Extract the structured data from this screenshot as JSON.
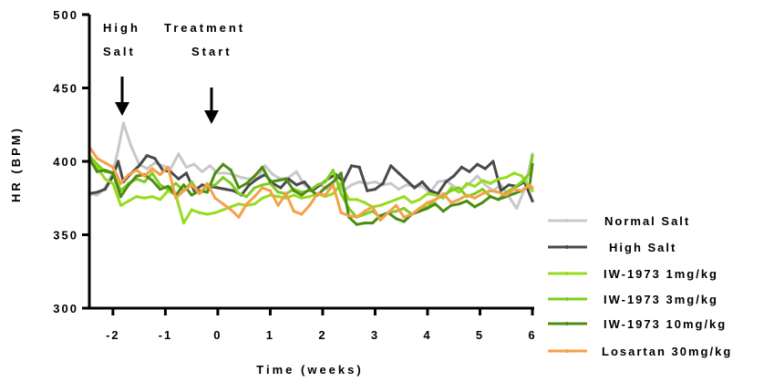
{
  "chart_data": {
    "type": "line",
    "xlabel": "Time (weeks)",
    "ylabel": "HR (BPM)",
    "xlim": [
      -2.45,
      6.0
    ],
    "ylim": [
      300,
      500
    ],
    "x_ticks": [
      -2,
      -1,
      0,
      1,
      2,
      3,
      4,
      5,
      6
    ],
    "x_tick_labels": [
      "-2",
      "-1",
      "0",
      "1",
      "2",
      "3",
      "4",
      "5",
      "6"
    ],
    "y_ticks": [
      300,
      350,
      400,
      450,
      500
    ],
    "y_tick_labels": [
      "300",
      "350",
      "400",
      "450",
      "500"
    ],
    "legend_position": "right",
    "annotations": [
      {
        "lines": [
          "High",
          "Salt"
        ],
        "x": -1.8,
        "arrow": true
      },
      {
        "lines": [
          "Treatment",
          "Start"
        ],
        "x": -0.1,
        "arrow": true
      }
    ],
    "series": [
      {
        "name": "Normal Salt",
        "color": "#c8c8c8",
        "x": [
          -2.45,
          -2.3,
          -2.15,
          -2.0,
          -1.9,
          -1.8,
          -1.65,
          -1.5,
          -1.35,
          -1.2,
          -1.05,
          -0.9,
          -0.75,
          -0.6,
          -0.45,
          -0.3,
          -0.15,
          0.0,
          0.15,
          0.3,
          0.45,
          0.6,
          0.75,
          0.9,
          1.05,
          1.2,
          1.35,
          1.5,
          1.65,
          1.8,
          1.95,
          2.1,
          2.25,
          2.4,
          2.55,
          2.7,
          2.85,
          3.0,
          3.15,
          3.3,
          3.45,
          3.6,
          3.75,
          3.9,
          4.05,
          4.2,
          4.35,
          4.5,
          4.65,
          4.8,
          4.95,
          5.1,
          5.25,
          5.4,
          5.55,
          5.7,
          5.85,
          6.0
        ],
        "y": [
          378,
          377,
          382,
          393,
          408,
          426,
          410,
          398,
          395,
          399,
          397,
          395,
          405,
          396,
          398,
          393,
          397,
          392,
          392,
          391,
          389,
          388,
          388,
          397,
          391,
          388,
          389,
          393,
          384,
          380,
          384,
          381,
          388,
          380,
          384,
          386,
          385,
          386,
          384,
          385,
          381,
          384,
          383,
          383,
          379,
          386,
          387,
          383,
          381,
          385,
          390,
          384,
          380,
          384,
          376,
          368,
          381,
          405
        ]
      },
      {
        "name": "High Salt",
        "color": "#4a4a4a",
        "x": [
          -2.45,
          -2.3,
          -2.15,
          -2.0,
          -1.9,
          -1.8,
          -1.65,
          -1.5,
          -1.35,
          -1.2,
          -1.05,
          -0.9,
          -0.75,
          -0.6,
          -0.45,
          -0.3,
          -0.15,
          0.0,
          0.15,
          0.3,
          0.45,
          0.6,
          0.75,
          0.9,
          1.05,
          1.2,
          1.35,
          1.5,
          1.65,
          1.8,
          1.95,
          2.1,
          2.25,
          2.4,
          2.55,
          2.7,
          2.85,
          3.0,
          3.15,
          3.3,
          3.45,
          3.6,
          3.75,
          3.9,
          4.05,
          4.2,
          4.35,
          4.5,
          4.65,
          4.8,
          4.95,
          5.1,
          5.25,
          5.4,
          5.55,
          5.7,
          5.85,
          6.0
        ],
        "y": [
          378,
          379,
          381,
          390,
          400,
          386,
          392,
          397,
          404,
          402,
          394,
          393,
          388,
          392,
          380,
          384,
          383,
          382,
          381,
          380,
          377,
          384,
          388,
          391,
          385,
          382,
          388,
          384,
          386,
          380,
          384,
          388,
          391,
          386,
          397,
          396,
          380,
          381,
          385,
          397,
          392,
          387,
          382,
          386,
          380,
          378,
          386,
          390,
          396,
          393,
          398,
          395,
          400,
          380,
          384,
          383,
          386,
          373
        ]
      },
      {
        "name": "IW-1973 1mg/kg",
        "color": "#96dc1e",
        "x": [
          -2.45,
          -2.3,
          -2.15,
          -2.0,
          -1.85,
          -1.7,
          -1.55,
          -1.4,
          -1.25,
          -1.1,
          -0.95,
          -0.8,
          -0.65,
          -0.5,
          -0.35,
          -0.2,
          -0.05,
          0.1,
          0.25,
          0.4,
          0.55,
          0.7,
          0.85,
          1.0,
          1.15,
          1.3,
          1.45,
          1.6,
          1.75,
          1.9,
          2.05,
          2.2,
          2.35,
          2.5,
          2.65,
          2.8,
          2.95,
          3.1,
          3.25,
          3.4,
          3.55,
          3.7,
          3.85,
          4.0,
          4.15,
          4.3,
          4.45,
          4.6,
          4.75,
          4.9,
          5.05,
          5.2,
          5.35,
          5.5,
          5.65,
          5.8,
          5.95,
          6.0
        ],
        "y": [
          400,
          396,
          388,
          385,
          370,
          373,
          376,
          375,
          376,
          374,
          380,
          377,
          358,
          367,
          365,
          364,
          365,
          367,
          369,
          371,
          370,
          371,
          375,
          377,
          376,
          375,
          377,
          375,
          376,
          378,
          376,
          378,
          385,
          374,
          374,
          372,
          369,
          370,
          372,
          374,
          376,
          372,
          374,
          378,
          377,
          375,
          382,
          379,
          385,
          383,
          387,
          385,
          388,
          389,
          392,
          390,
          382,
          380
        ]
      },
      {
        "name": "IW-1973 3mg/kg",
        "color": "#7fcd1e",
        "x": [
          -2.45,
          -2.3,
          -2.15,
          -2.0,
          -1.85,
          -1.7,
          -1.55,
          -1.4,
          -1.25,
          -1.1,
          -0.95,
          -0.8,
          -0.65,
          -0.5,
          -0.35,
          -0.2,
          -0.05,
          0.1,
          0.25,
          0.4,
          0.55,
          0.7,
          0.85,
          1.0,
          1.15,
          1.3,
          1.45,
          1.6,
          1.75,
          1.9,
          2.05,
          2.2,
          2.35,
          2.5,
          2.65,
          2.8,
          2.95,
          3.1,
          3.25,
          3.4,
          3.55,
          3.7,
          3.85,
          4.0,
          4.15,
          4.3,
          4.45,
          4.6,
          4.75,
          4.9,
          5.05,
          5.2,
          5.35,
          5.5,
          5.65,
          5.8,
          5.95,
          6.0
        ],
        "y": [
          404,
          398,
          393,
          392,
          380,
          385,
          388,
          386,
          392,
          384,
          381,
          385,
          380,
          386,
          378,
          383,
          384,
          389,
          385,
          378,
          376,
          382,
          384,
          385,
          379,
          378,
          381,
          379,
          380,
          384,
          386,
          394,
          378,
          368,
          362,
          364,
          366,
          362,
          365,
          366,
          368,
          364,
          368,
          369,
          374,
          377,
          380,
          382,
          376,
          378,
          381,
          376,
          374,
          379,
          382,
          386,
          392,
          404
        ]
      },
      {
        "name": "IW-1973 10mg/kg",
        "color": "#4d8c12",
        "x": [
          -2.45,
          -2.3,
          -2.15,
          -2.0,
          -1.85,
          -1.7,
          -1.55,
          -1.4,
          -1.25,
          -1.1,
          -0.95,
          -0.8,
          -0.65,
          -0.5,
          -0.35,
          -0.2,
          -0.05,
          0.1,
          0.25,
          0.4,
          0.55,
          0.7,
          0.85,
          1.0,
          1.15,
          1.3,
          1.45,
          1.6,
          1.75,
          1.9,
          2.05,
          2.2,
          2.35,
          2.5,
          2.65,
          2.8,
          2.95,
          3.1,
          3.25,
          3.4,
          3.55,
          3.7,
          3.85,
          4.0,
          4.15,
          4.3,
          4.45,
          4.6,
          4.75,
          4.9,
          5.05,
          5.2,
          5.35,
          5.5,
          5.65,
          5.8,
          5.95,
          6.0
        ],
        "y": [
          402,
          393,
          394,
          392,
          376,
          384,
          390,
          391,
          387,
          381,
          383,
          377,
          384,
          377,
          380,
          379,
          392,
          398,
          394,
          382,
          385,
          390,
          396,
          386,
          387,
          388,
          380,
          377,
          381,
          377,
          382,
          386,
          392,
          362,
          357,
          358,
          358,
          363,
          365,
          361,
          359,
          364,
          366,
          368,
          371,
          366,
          370,
          371,
          373,
          369,
          372,
          376,
          374,
          376,
          378,
          380,
          384,
          398
        ]
      },
      {
        "name": "Losartan 30mg/kg",
        "color": "#f5a04a",
        "x": [
          -2.45,
          -2.3,
          -2.15,
          -2.0,
          -1.85,
          -1.7,
          -1.55,
          -1.4,
          -1.25,
          -1.1,
          -0.95,
          -0.8,
          -0.65,
          -0.5,
          -0.35,
          -0.2,
          -0.05,
          0.1,
          0.25,
          0.4,
          0.55,
          0.7,
          0.85,
          1.0,
          1.15,
          1.3,
          1.45,
          1.6,
          1.75,
          1.9,
          2.05,
          2.2,
          2.35,
          2.5,
          2.65,
          2.8,
          2.95,
          3.1,
          3.25,
          3.4,
          3.55,
          3.7,
          3.85,
          4.0,
          4.15,
          4.3,
          4.45,
          4.6,
          4.75,
          4.9,
          5.05,
          5.2,
          5.35,
          5.5,
          5.65,
          5.8,
          5.95,
          6.0
        ],
        "y": [
          410,
          402,
          399,
          396,
          385,
          391,
          394,
          390,
          395,
          391,
          396,
          375,
          380,
          384,
          378,
          385,
          375,
          371,
          367,
          362,
          371,
          376,
          382,
          380,
          370,
          378,
          366,
          364,
          370,
          378,
          377,
          384,
          365,
          363,
          362,
          366,
          369,
          360,
          365,
          370,
          362,
          364,
          368,
          372,
          374,
          378,
          372,
          374,
          377,
          375,
          378,
          380,
          379,
          377,
          381,
          380,
          384,
          382
        ]
      }
    ]
  }
}
